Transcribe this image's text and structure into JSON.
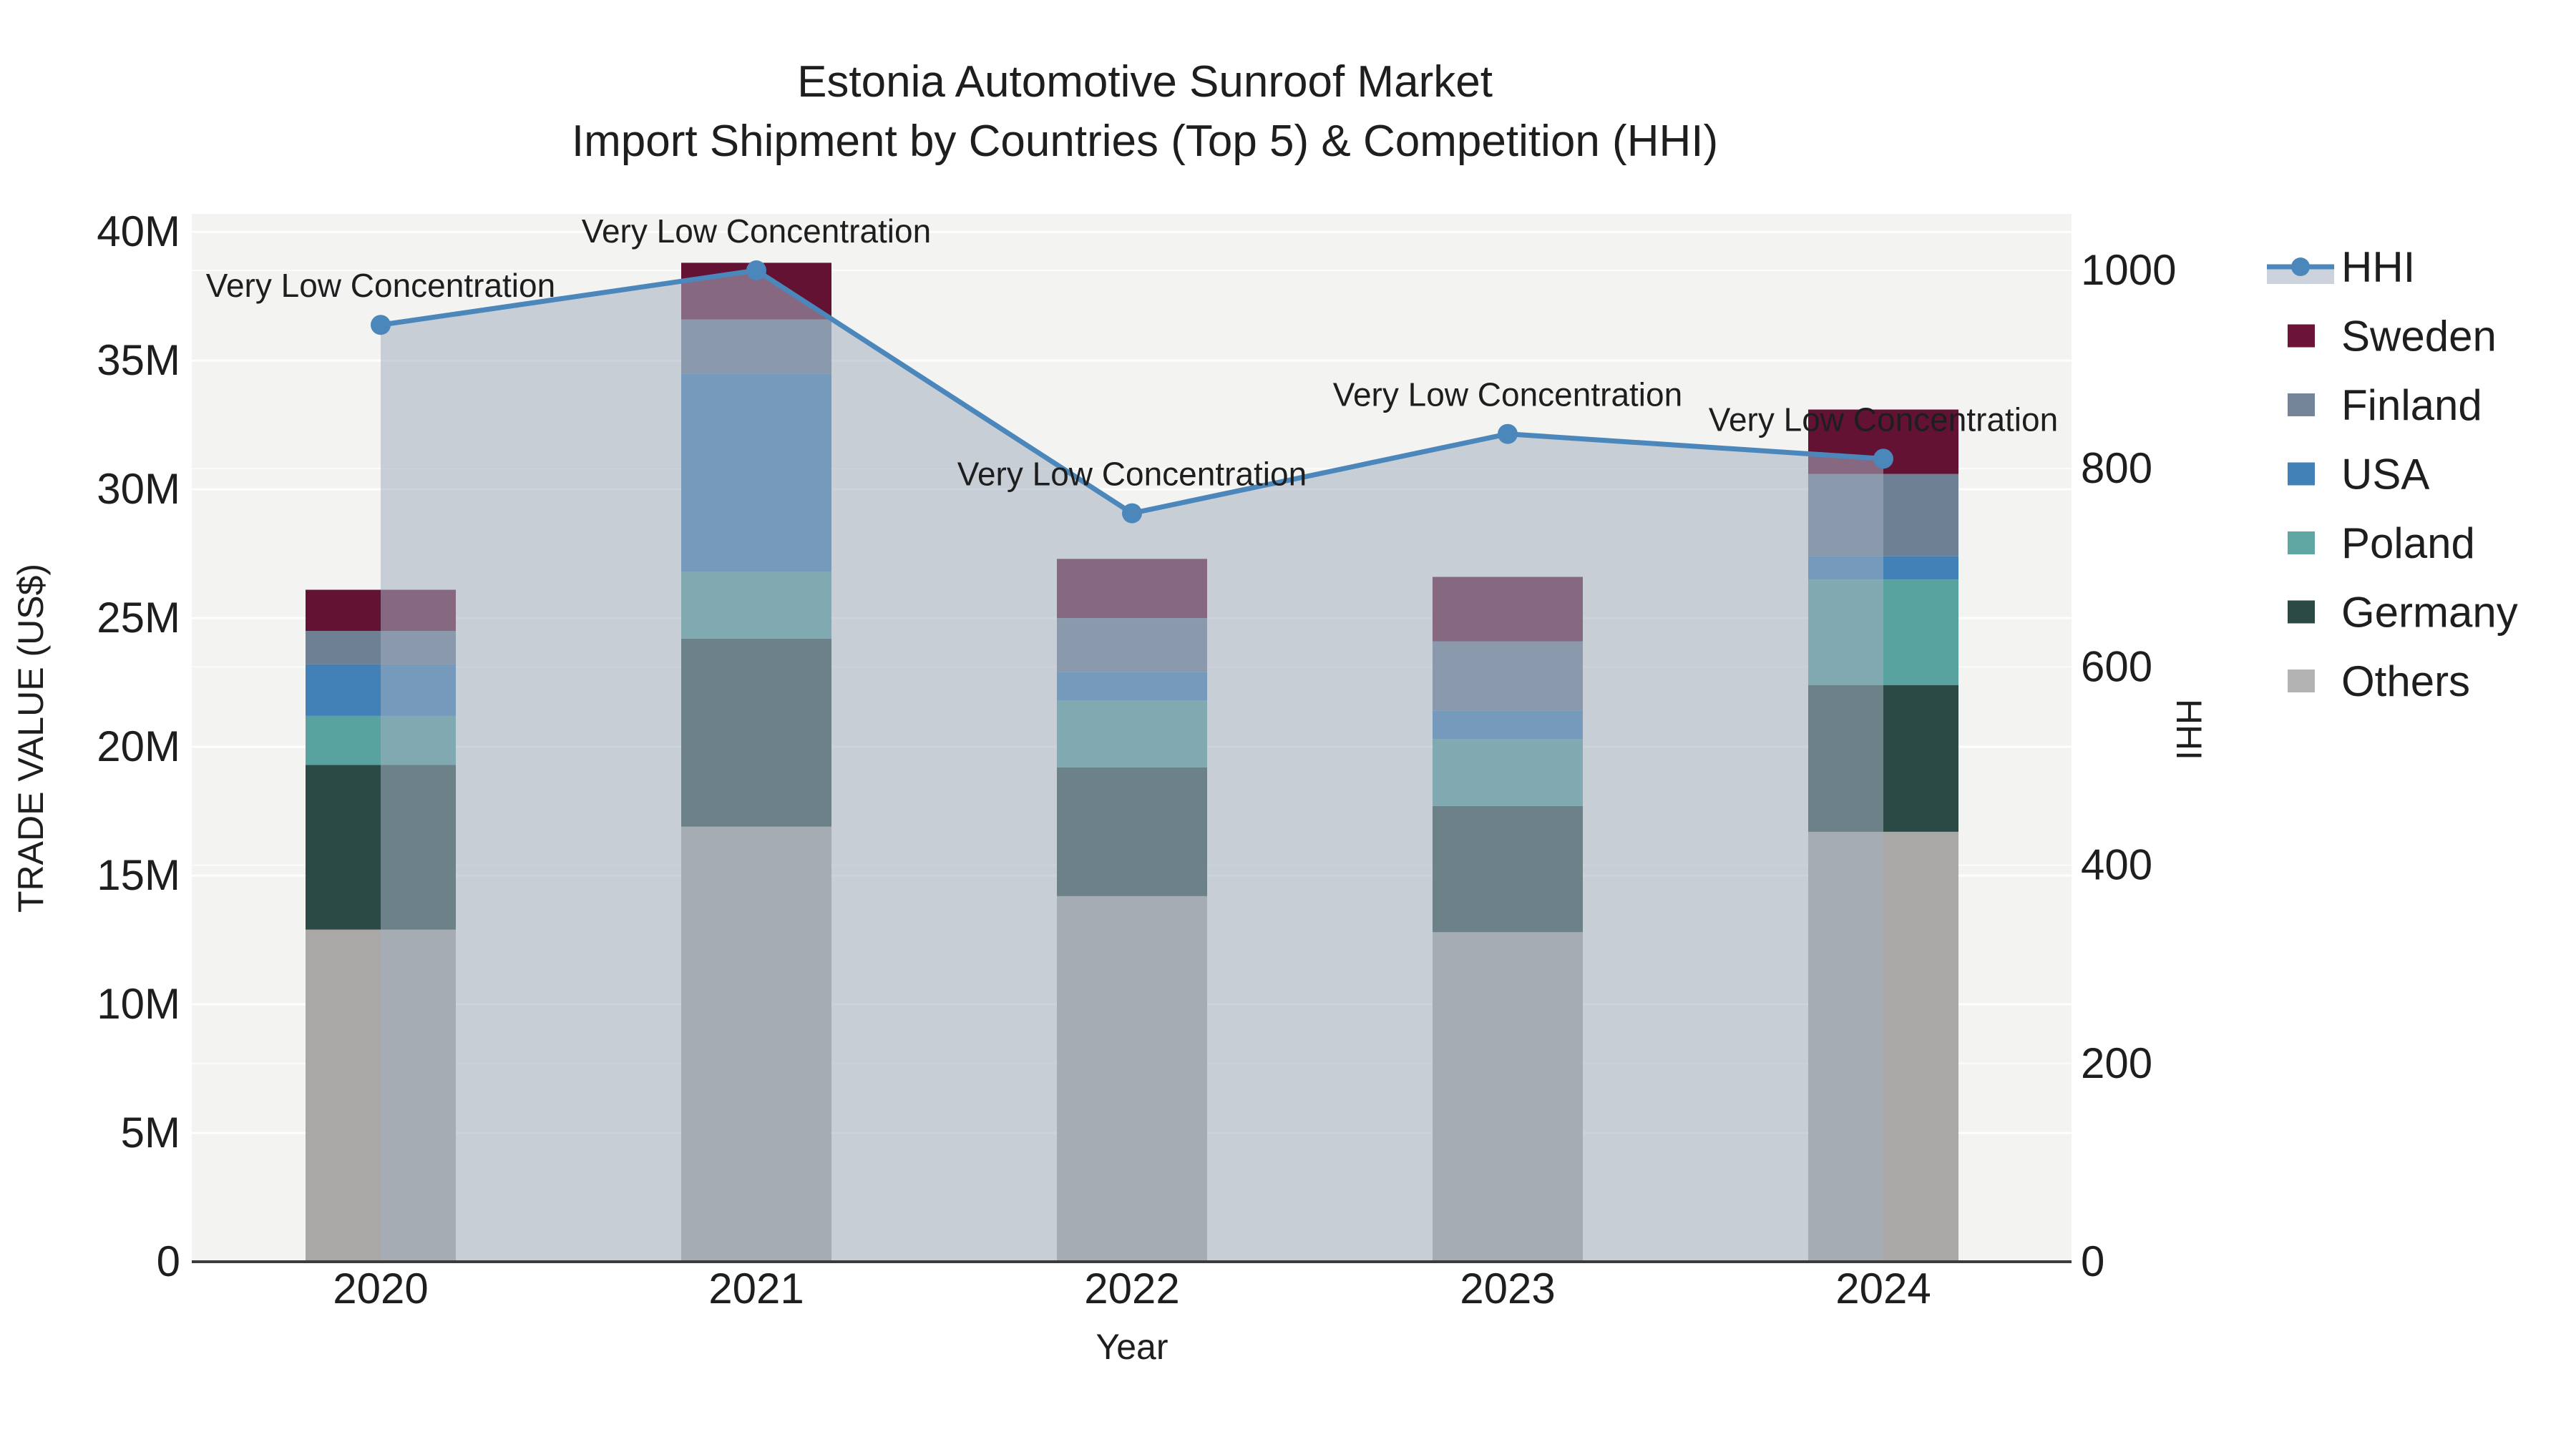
{
  "title": {
    "line1": "Estonia Automotive Sunroof Market",
    "line2": "Import Shipment by Countries (Top 5) & Competition (HHI)"
  },
  "axes": {
    "left": {
      "title": "TRADE VALUE (US$)",
      "tick_labels": [
        "0",
        "5M",
        "10M",
        "15M",
        "20M",
        "25M",
        "30M",
        "35M",
        "40M"
      ],
      "tick_values_millions": [
        0,
        5,
        10,
        15,
        20,
        25,
        30,
        35,
        40
      ],
      "max_millions": 40.7
    },
    "right": {
      "title": "HHI",
      "tick_labels": [
        "0",
        "200",
        "400",
        "600",
        "800",
        "1000"
      ],
      "tick_values": [
        0,
        200,
        400,
        600,
        800,
        1000
      ],
      "max": 1057
    },
    "x": {
      "title": "Year",
      "categories": [
        "2020",
        "2021",
        "2022",
        "2023",
        "2024"
      ]
    }
  },
  "chart_data": {
    "type": "combo: stacked-bar + line(area)",
    "categories": [
      2020,
      2021,
      2022,
      2023,
      2024
    ],
    "stack_order_bottom_to_top": [
      "Others",
      "Germany",
      "Poland",
      "USA",
      "Finland",
      "Sweden"
    ],
    "series": [
      {
        "name": "Others",
        "color": "#a9a8a6",
        "values_millions": [
          12.9,
          16.9,
          14.2,
          12.8,
          16.7
        ]
      },
      {
        "name": "Germany",
        "color": "#2b4a45",
        "values_millions": [
          6.4,
          7.3,
          5.0,
          4.9,
          5.7
        ]
      },
      {
        "name": "Poland",
        "color": "#58a29f",
        "values_millions": [
          1.9,
          2.6,
          2.6,
          2.6,
          4.1
        ]
      },
      {
        "name": "USA",
        "color": "#4181b8",
        "values_millions": [
          2.0,
          7.7,
          1.1,
          1.1,
          0.9
        ]
      },
      {
        "name": "Finland",
        "color": "#6d8094",
        "values_millions": [
          1.3,
          2.1,
          2.1,
          2.7,
          3.2
        ]
      },
      {
        "name": "Sweden",
        "color": "#641234",
        "values_millions": [
          1.6,
          2.2,
          2.3,
          2.5,
          2.5
        ]
      }
    ],
    "totals_millions": [
      26.1,
      38.8,
      27.3,
      26.6,
      33.1
    ],
    "line_series": {
      "name": "HHI",
      "axis": "right",
      "values": [
        945,
        1000,
        755,
        835,
        810
      ],
      "color": "#4c87bb",
      "marker_color": "#4c87bb",
      "area_fill_color": "rgba(163,175,192,0.55)"
    },
    "annotations": [
      {
        "x": 2020,
        "text": "Very Low Concentration"
      },
      {
        "x": 2021,
        "text": "Very Low Concentration"
      },
      {
        "x": 2022,
        "text": "Very Low Concentration"
      },
      {
        "x": 2023,
        "text": "Very Low Concentration"
      },
      {
        "x": 2024,
        "text": "Very Low Concentration"
      }
    ],
    "grid": true,
    "legend_position": "right",
    "plot_background": "#f3f3f2",
    "grid_color": "#ffffff",
    "axis_line_color": "#3c3c3a"
  },
  "legend": {
    "items": [
      {
        "label": "HHI",
        "type": "line-marker",
        "color": "#4c87bb",
        "band_color": "#cdd3dc"
      },
      {
        "label": "Sweden",
        "type": "swatch",
        "color": "#6b1339"
      },
      {
        "label": "Finland",
        "type": "swatch",
        "color": "#74859a"
      },
      {
        "label": "USA",
        "type": "swatch",
        "color": "#4181b8"
      },
      {
        "label": "Poland",
        "type": "swatch",
        "color": "#60a6a2"
      },
      {
        "label": "Germany",
        "type": "swatch",
        "color": "#2b4a45"
      },
      {
        "label": "Others",
        "type": "swatch",
        "color": "#b4b3b3"
      }
    ]
  }
}
